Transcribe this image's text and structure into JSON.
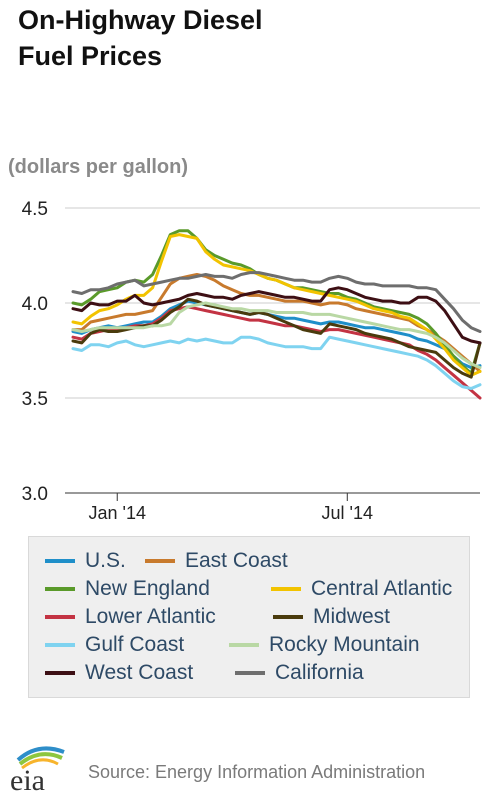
{
  "header": {
    "title_line1": "On-Highway Diesel",
    "title_line2": "Fuel Prices",
    "units": "(dollars per gallon)"
  },
  "chart_data": {
    "type": "line",
    "title": "On-Highway Diesel Fuel Prices",
    "ylabel": "(dollars per gallon)",
    "ylim": [
      3.0,
      4.5
    ],
    "yticks": [
      3.0,
      3.5,
      4.0,
      4.5
    ],
    "ytick_labels": [
      "3.0",
      "3.5",
      "4.0",
      "4.5"
    ],
    "xlim": [
      0,
      46
    ],
    "xticks": [
      {
        "x": 5,
        "label": "Jan '14"
      },
      {
        "x": 31,
        "label": "Jul '14"
      }
    ],
    "grid": true,
    "legend_position": "bottom",
    "series": [
      {
        "name": "U.S.",
        "color": "#1f8fc9",
        "values": [
          3.85,
          3.84,
          3.86,
          3.87,
          3.88,
          3.87,
          3.88,
          3.89,
          3.9,
          3.9,
          3.93,
          3.97,
          3.99,
          4.01,
          4.0,
          3.99,
          3.98,
          3.97,
          3.96,
          3.95,
          3.94,
          3.95,
          3.94,
          3.93,
          3.92,
          3.92,
          3.91,
          3.9,
          3.89,
          3.9,
          3.9,
          3.89,
          3.88,
          3.87,
          3.87,
          3.86,
          3.85,
          3.84,
          3.83,
          3.81,
          3.8,
          3.78,
          3.76,
          3.72,
          3.68,
          3.66,
          3.67
        ]
      },
      {
        "name": "East Coast",
        "color": "#c87a2d",
        "values": [
          3.86,
          3.86,
          3.9,
          3.91,
          3.92,
          3.93,
          3.94,
          3.94,
          3.95,
          3.96,
          4.03,
          4.1,
          4.13,
          4.14,
          4.15,
          4.14,
          4.12,
          4.09,
          4.07,
          4.05,
          4.04,
          4.04,
          4.03,
          4.02,
          4.01,
          4.01,
          4.01,
          4.0,
          3.99,
          4.0,
          4.0,
          3.99,
          3.97,
          3.96,
          3.95,
          3.94,
          3.93,
          3.92,
          3.91,
          3.88,
          3.86,
          3.83,
          3.8,
          3.76,
          3.72,
          3.68,
          3.64
        ]
      },
      {
        "name": "New England",
        "color": "#5a9a2a",
        "values": [
          4.0,
          3.99,
          4.02,
          4.06,
          4.07,
          4.08,
          4.11,
          4.12,
          4.11,
          4.15,
          4.25,
          4.36,
          4.38,
          4.38,
          4.34,
          4.28,
          4.25,
          4.23,
          4.21,
          4.2,
          4.18,
          4.15,
          4.13,
          4.12,
          4.1,
          4.08,
          4.08,
          4.07,
          4.06,
          4.05,
          4.05,
          4.03,
          4.02,
          4.0,
          3.98,
          3.97,
          3.96,
          3.95,
          3.94,
          3.92,
          3.89,
          3.84,
          3.78,
          3.72,
          3.67,
          3.63,
          3.79
        ]
      },
      {
        "name": "Central Atlantic",
        "color": "#f2c300",
        "values": [
          3.9,
          3.89,
          3.93,
          3.96,
          3.97,
          3.99,
          4.02,
          4.04,
          4.04,
          4.08,
          4.22,
          4.35,
          4.36,
          4.35,
          4.34,
          4.27,
          4.23,
          4.2,
          4.19,
          4.18,
          4.17,
          4.15,
          4.13,
          4.12,
          4.1,
          4.08,
          4.07,
          4.06,
          4.05,
          4.04,
          4.03,
          4.02,
          4.01,
          3.99,
          3.97,
          3.96,
          3.95,
          3.93,
          3.92,
          3.89,
          3.86,
          3.81,
          3.76,
          3.7,
          3.66,
          3.62,
          3.64
        ]
      },
      {
        "name": "Lower Atlantic",
        "color": "#c33343",
        "values": [
          3.82,
          3.81,
          3.84,
          3.85,
          3.86,
          3.86,
          3.87,
          3.88,
          3.88,
          3.89,
          3.92,
          3.96,
          3.97,
          3.98,
          3.97,
          3.96,
          3.95,
          3.94,
          3.93,
          3.92,
          3.91,
          3.91,
          3.9,
          3.89,
          3.88,
          3.88,
          3.87,
          3.86,
          3.85,
          3.86,
          3.86,
          3.85,
          3.84,
          3.83,
          3.82,
          3.81,
          3.8,
          3.79,
          3.78,
          3.75,
          3.73,
          3.7,
          3.66,
          3.62,
          3.58,
          3.54,
          3.5
        ]
      },
      {
        "name": "Midwest",
        "color": "#4a3b0d",
        "values": [
          3.8,
          3.79,
          3.84,
          3.86,
          3.85,
          3.85,
          3.86,
          3.87,
          3.88,
          3.88,
          3.91,
          3.95,
          3.98,
          4.02,
          4.01,
          3.99,
          3.98,
          3.97,
          3.96,
          3.95,
          3.94,
          3.95,
          3.94,
          3.92,
          3.9,
          3.88,
          3.86,
          3.85,
          3.84,
          3.89,
          3.88,
          3.87,
          3.86,
          3.84,
          3.83,
          3.82,
          3.81,
          3.79,
          3.77,
          3.76,
          3.75,
          3.74,
          3.7,
          3.66,
          3.63,
          3.61,
          3.79
        ]
      },
      {
        "name": "Gulf Coast",
        "color": "#7fd3f0",
        "values": [
          3.76,
          3.75,
          3.78,
          3.78,
          3.77,
          3.79,
          3.8,
          3.78,
          3.77,
          3.78,
          3.79,
          3.8,
          3.79,
          3.81,
          3.8,
          3.81,
          3.8,
          3.79,
          3.79,
          3.82,
          3.82,
          3.81,
          3.79,
          3.78,
          3.77,
          3.77,
          3.77,
          3.76,
          3.76,
          3.82,
          3.81,
          3.8,
          3.79,
          3.78,
          3.77,
          3.76,
          3.75,
          3.74,
          3.73,
          3.72,
          3.7,
          3.67,
          3.63,
          3.59,
          3.56,
          3.55,
          3.57
        ]
      },
      {
        "name": "Rocky Mountain",
        "color": "#b9d8a4",
        "values": [
          3.86,
          3.85,
          3.86,
          3.87,
          3.87,
          3.87,
          3.87,
          3.87,
          3.87,
          3.88,
          3.88,
          3.89,
          3.95,
          3.98,
          3.99,
          4.0,
          3.99,
          3.98,
          3.97,
          3.97,
          3.96,
          3.96,
          3.96,
          3.95,
          3.95,
          3.95,
          3.95,
          3.94,
          3.94,
          3.94,
          3.93,
          3.92,
          3.91,
          3.9,
          3.89,
          3.88,
          3.87,
          3.86,
          3.86,
          3.85,
          3.84,
          3.82,
          3.79,
          3.75,
          3.71,
          3.68,
          3.66
        ]
      },
      {
        "name": "West Coast",
        "color": "#3d0f14",
        "values": [
          3.97,
          3.96,
          4.0,
          3.99,
          3.99,
          4.01,
          4.01,
          4.04,
          4.0,
          3.99,
          4.0,
          4.01,
          4.02,
          4.04,
          4.05,
          4.04,
          4.03,
          4.03,
          4.02,
          4.04,
          4.05,
          4.06,
          4.05,
          4.04,
          4.03,
          4.03,
          4.02,
          4.01,
          4.01,
          4.07,
          4.08,
          4.07,
          4.05,
          4.03,
          4.02,
          4.01,
          4.01,
          4.0,
          4.0,
          4.03,
          4.03,
          4.01,
          3.96,
          3.89,
          3.82,
          3.8,
          3.79
        ]
      },
      {
        "name": "California",
        "color": "#6e6e6e",
        "values": [
          4.06,
          4.05,
          4.07,
          4.07,
          4.08,
          4.1,
          4.11,
          4.12,
          4.09,
          4.1,
          4.11,
          4.12,
          4.13,
          4.13,
          4.14,
          4.15,
          4.14,
          4.14,
          4.13,
          4.15,
          4.16,
          4.16,
          4.15,
          4.14,
          4.13,
          4.12,
          4.12,
          4.11,
          4.11,
          4.13,
          4.14,
          4.13,
          4.11,
          4.1,
          4.1,
          4.09,
          4.09,
          4.09,
          4.09,
          4.08,
          4.08,
          4.07,
          4.02,
          3.97,
          3.91,
          3.87,
          3.85
        ]
      }
    ]
  },
  "footer": {
    "logo_text": "eia",
    "source": "Source: Energy Information Administration"
  }
}
